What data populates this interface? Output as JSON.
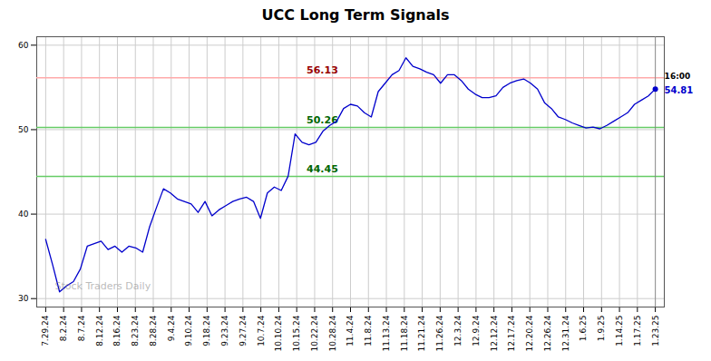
{
  "chart_data": {
    "type": "line",
    "title": "UCC Long Term Signals",
    "color": "#0000cc",
    "values": [
      37.0,
      34.0,
      30.8,
      31.5,
      32.0,
      33.5,
      36.2,
      36.5,
      36.8,
      35.8,
      36.2,
      35.5,
      36.2,
      36.0,
      35.5,
      38.5,
      40.8,
      43.0,
      42.5,
      41.8,
      41.5,
      41.2,
      40.2,
      41.5,
      39.8,
      40.5,
      41.0,
      41.5,
      41.8,
      42.0,
      41.5,
      39.5,
      42.5,
      43.2,
      42.8,
      44.5,
      49.5,
      48.5,
      48.2,
      48.5,
      49.8,
      50.5,
      51.0,
      52.5,
      53.0,
      52.8,
      52.0,
      51.5,
      54.5,
      55.5,
      56.5,
      57.0,
      58.5,
      57.5,
      57.2,
      56.8,
      56.5,
      55.5,
      56.5,
      56.5,
      55.8,
      54.8,
      54.2,
      53.8,
      53.8,
      54.0,
      55.0,
      55.5,
      55.8,
      56.0,
      55.5,
      54.8,
      53.2,
      52.5,
      51.5,
      51.2,
      50.8,
      50.5,
      50.2,
      50.3,
      50.1,
      50.5,
      51.0,
      51.5,
      52.0,
      53.0,
      53.5,
      54.0,
      54.81
    ],
    "xlim": [
      -0.5,
      34.5
    ],
    "xticks": [
      {
        "value": 0,
        "label": "7.29.24"
      },
      {
        "value": 1,
        "label": "8.2.24"
      },
      {
        "value": 2,
        "label": "8.7.24"
      },
      {
        "value": 3,
        "label": "8.12.24"
      },
      {
        "value": 4,
        "label": "8.16.24"
      },
      {
        "value": 5,
        "label": "8.23.24"
      },
      {
        "value": 6,
        "label": "8.28.24"
      },
      {
        "value": 7,
        "label": "9.4.24"
      },
      {
        "value": 8,
        "label": "9.10.24"
      },
      {
        "value": 9,
        "label": "9.18.24"
      },
      {
        "value": 10,
        "label": "9.23.24"
      },
      {
        "value": 11,
        "label": "9.27.24"
      },
      {
        "value": 12,
        "label": "10.7.24"
      },
      {
        "value": 13,
        "label": "10.10.24"
      },
      {
        "value": 14,
        "label": "10.15.24"
      },
      {
        "value": 15,
        "label": "10.22.24"
      },
      {
        "value": 16,
        "label": "10.28.24"
      },
      {
        "value": 17,
        "label": "11.4.24"
      },
      {
        "value": 18,
        "label": "11.8.24"
      },
      {
        "value": 19,
        "label": "11.13.24"
      },
      {
        "value": 20,
        "label": "11.18.24"
      },
      {
        "value": 21,
        "label": "11.21.24"
      },
      {
        "value": 22,
        "label": "11.26.24"
      },
      {
        "value": 23,
        "label": "12.3.24"
      },
      {
        "value": 24,
        "label": "12.9.24"
      },
      {
        "value": 25,
        "label": "12.12.24"
      },
      {
        "value": 26,
        "label": "12.17.24"
      },
      {
        "value": 27,
        "label": "12.20.24"
      },
      {
        "value": 28,
        "label": "12.26.24"
      },
      {
        "value": 29,
        "label": "12.31.24"
      },
      {
        "value": 30,
        "label": "1.6.25"
      },
      {
        "value": 31,
        "label": "1.9.25"
      },
      {
        "value": 32,
        "label": "1.14.25"
      },
      {
        "value": 33,
        "label": "1.17.25"
      },
      {
        "value": 34,
        "label": "1.23.25"
      }
    ],
    "ylim": [
      29,
      61
    ],
    "yticks": [
      30,
      40,
      50,
      60
    ],
    "grid": true,
    "reference_lines": [
      {
        "y": 56.13,
        "color": "#ffaaaa",
        "text": "56.13",
        "text_color": "#990000"
      },
      {
        "y": 50.26,
        "color": "#66cc66",
        "text": "50.26",
        "text_color": "#006600"
      },
      {
        "y": 44.45,
        "color": "#66cc66",
        "text": "44.45",
        "text_color": "#006600"
      }
    ],
    "end_annotation": {
      "label": "16:00",
      "value": 54.81,
      "value_label": "54.81"
    },
    "watermark": "Stock Traders Daily"
  }
}
